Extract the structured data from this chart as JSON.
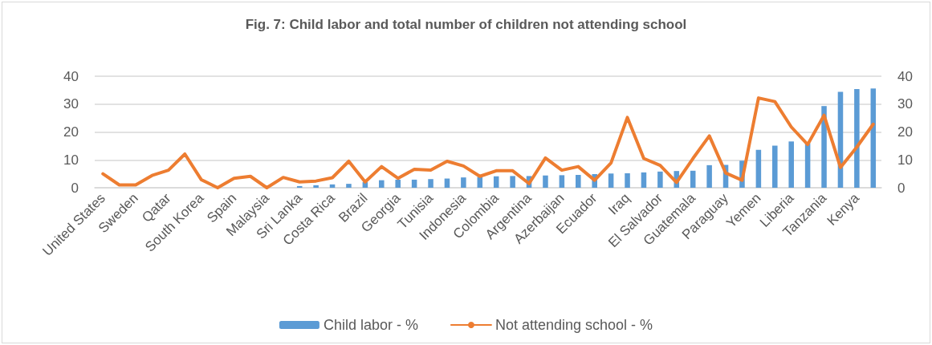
{
  "chart_data": {
    "type": "bar",
    "title": "Fig. 7: Child labor and total number of children not attending school",
    "categories": [
      "United States",
      null,
      "Sweden",
      null,
      "Qatar",
      null,
      "South Korea",
      null,
      "Spain",
      null,
      "Malaysia",
      null,
      "Sri Lanka",
      null,
      "Costa Rica",
      null,
      "Brazil",
      null,
      "Georgia",
      null,
      "Tunisia",
      null,
      "Indonesia",
      null,
      "Colombia",
      null,
      "Argentina",
      null,
      "Azerbaijan",
      null,
      "Ecuador",
      null,
      "Iraq",
      null,
      "El Salvador",
      null,
      "Guatemala",
      null,
      "Paraguay",
      null,
      "Yemen",
      null,
      "Liberia",
      null,
      "Tanzania",
      null,
      "Kenya",
      null
    ],
    "series": [
      {
        "name": "Child labor - %",
        "color": "#5b9bd5",
        "values": [
          0,
          0,
          0,
          0,
          0,
          0,
          0,
          0,
          0,
          0,
          0,
          0,
          0.6,
          0.9,
          1.2,
          1.4,
          2.0,
          2.7,
          2.9,
          2.9,
          3.1,
          3.3,
          3.7,
          3.9,
          4.1,
          4.2,
          4.2,
          4.4,
          4.5,
          4.6,
          4.9,
          5.1,
          5.2,
          5.5,
          5.8,
          6.0,
          6.1,
          8.1,
          8.2,
          9.7,
          13.6,
          15.1,
          16.6,
          16.0,
          29.3,
          34.4,
          35.4,
          35.6
        ]
      },
      {
        "name": "Not attending school - %",
        "type": "line",
        "axis": "y2",
        "color": "#ed7d31",
        "values": [
          5.0,
          1.0,
          1.0,
          4.4,
          6.3,
          12.1,
          2.9,
          0,
          3.4,
          4.1,
          0,
          3.7,
          2.1,
          2.4,
          3.6,
          9.5,
          2.1,
          7.6,
          3.4,
          6.6,
          6.3,
          9.5,
          7.8,
          4.1,
          6.1,
          6.1,
          1.5,
          10.7,
          6.3,
          7.6,
          2.7,
          8.9,
          25.2,
          10.5,
          8.0,
          1.9,
          10.5,
          18.6,
          5.3,
          2.7,
          32.2,
          30.9,
          21.8,
          15.5,
          26.0,
          7.3,
          14.6,
          22.8
        ]
      }
    ],
    "ylim": [
      0,
      40
    ],
    "yticks": [
      0,
      10,
      20,
      30,
      40
    ],
    "y2lim": [
      0,
      40
    ],
    "y2ticks": [
      0,
      10,
      20,
      30,
      40
    ],
    "grid": "y",
    "legend": "bottom",
    "marker": "none",
    "line_style": "solid"
  }
}
